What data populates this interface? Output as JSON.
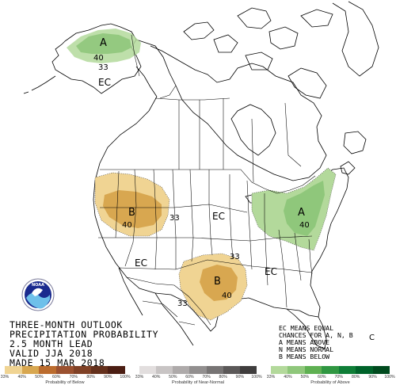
{
  "title_lines": [
    "THREE-MONTH OUTLOOK",
    "PRECIPITATION PROBABILITY",
    "2.5 MONTH LEAD",
    "VALID JJA 2018",
    "MADE 15 MAR 2018"
  ],
  "key_lines": [
    "EC MEANS EQUAL",
    "CHANCES FOR A, N, B",
    "A MEANS ABOVE",
    "N MEANS NORMAL",
    "B MEANS BELOW"
  ],
  "logo_text": "NOAA",
  "region_labels": {
    "alaska_a": "A",
    "alaska_ec": "EC",
    "northwest_b": "B",
    "central_ec": "EC",
    "southwest_ec": "EC",
    "southern_plains_b": "B",
    "southeast_ec": "EC",
    "northeast_a": "A"
  },
  "contour_labels": {
    "ak_40": "40",
    "ak_33": "33",
    "nw_40": "40",
    "nw_33": "33",
    "sp_33a": "33",
    "sp_40": "40",
    "sp_33b": "33",
    "ne_40": "40"
  },
  "small_label": "C",
  "legend": {
    "below": {
      "title": "Probability of Below",
      "ticks": [
        "33%",
        "40%",
        "50%",
        "60%",
        "70%",
        "80%",
        "90%",
        "100%"
      ],
      "colors": [
        "#f0d493",
        "#d8a750",
        "#bb6c2e",
        "#9b5130",
        "#804126",
        "#64301c",
        "#4b1e13"
      ]
    },
    "normal": {
      "title": "Probability of Near-Normal",
      "ticks": [
        "33%",
        "40%",
        "50%",
        "60%",
        "70%",
        "80%",
        "90%",
        "100%"
      ],
      "colors": [
        "#e2dede",
        "#c8c4c4",
        "#aeaaaa",
        "#928f8f",
        "#777474",
        "#5b5858",
        "#3f3d3d"
      ]
    },
    "above": {
      "title": "Probability of Above",
      "ticks": [
        "33%",
        "40%",
        "50%",
        "60%",
        "70%",
        "80%",
        "90%",
        "100%"
      ],
      "colors": [
        "#b3d99b",
        "#8fc77b",
        "#5fb052",
        "#309742",
        "#0f7e37",
        "#00632a",
        "#004a1e"
      ]
    }
  }
}
